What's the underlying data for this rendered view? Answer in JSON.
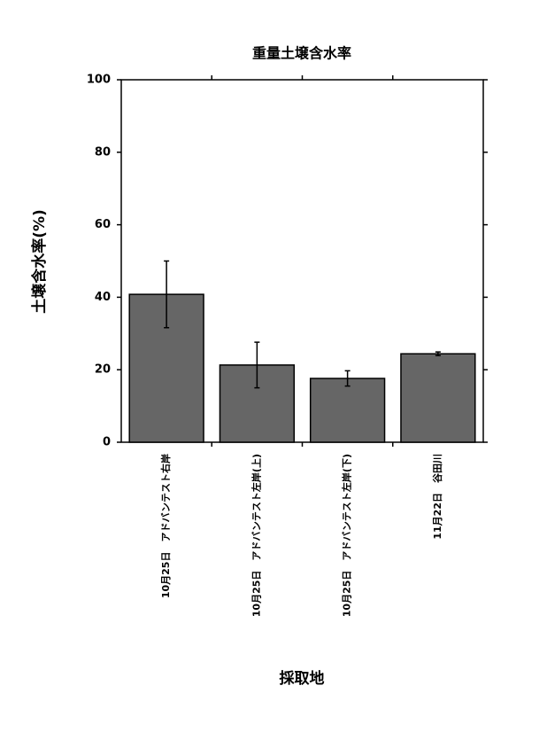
{
  "chart_data": {
    "type": "bar",
    "title": "重量土壌含水率",
    "x_label": "採取地",
    "y_label": "土壌含水率(%)",
    "categories": [
      "10月25日　アドバンテスト右岸",
      "10月25日　アドバンテスト左岸(上)",
      "10月25日　アドバンテスト左岸(下)",
      "11月22日　谷田川"
    ],
    "values": [
      40.8,
      21.3,
      17.6,
      24.4
    ],
    "errors": [
      9.2,
      6.3,
      2.1,
      0.5
    ],
    "color": "#666666",
    "ylim": [
      0,
      100
    ],
    "yticks": [
      0,
      20,
      40,
      60,
      80,
      100
    ]
  }
}
